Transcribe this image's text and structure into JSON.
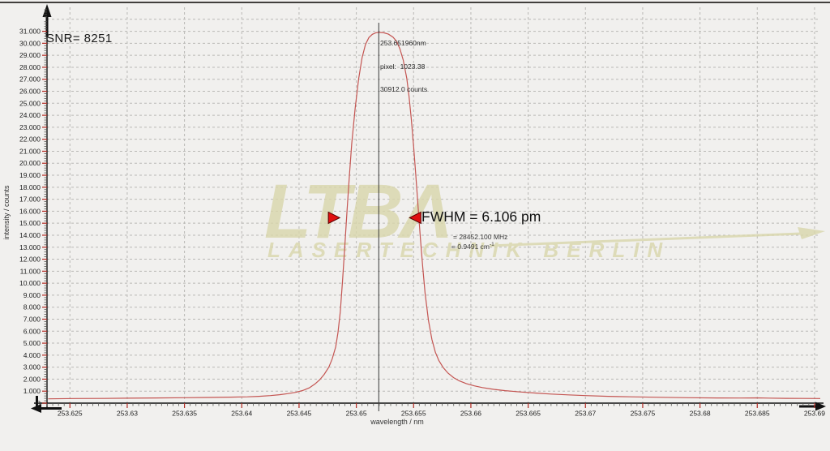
{
  "window": {
    "background": "#f1f0ee",
    "top_border_color": "#413f3c"
  },
  "colors": {
    "grid": "#b9b8b5",
    "axis": "#111111",
    "tick_major": "#b22a22",
    "tick_minor": "#555550",
    "tick_label": "#1e1e1e",
    "curve": "#c45552",
    "marker_line": "#3a3a3a",
    "marker_red": "#e01010",
    "marker_red_outline": "#550000",
    "watermark": "#d9d6ab"
  },
  "annotations": {
    "snr": "SNR= 8251",
    "peak": {
      "wavelength": "253.651960nm",
      "pixel": "pixel:  1023.38",
      "counts": "30912.0 counts",
      "marker_nm": 253.65196
    },
    "fwhm": {
      "label": "FWHM = 6.106 pm",
      "mhz": "= 28452.100 MHz",
      "wavenumber_value": "= 0.9491 cm",
      "wavenumber_sup": "-1",
      "level_counts": 15456,
      "left_tip_nm": 253.64855,
      "right_tip_nm": 253.65465
    }
  },
  "watermark": {
    "logo": "LTB",
    "logo_mark": "Λ",
    "subtitle": "LASERTECHNIK BERLIN"
  },
  "chart_data": {
    "type": "line",
    "title": "",
    "xlabel": "wavelength / nm",
    "ylabel": "intensity / counts",
    "x_range": [
      253.623,
      253.6905
    ],
    "y_range": [
      0,
      33000
    ],
    "grid": "dashed",
    "legend": "none",
    "x_major_ticks": [
      253.625,
      253.63,
      253.635,
      253.64,
      253.645,
      253.65,
      253.655,
      253.66,
      253.665,
      253.67,
      253.675,
      253.68,
      253.685,
      253.69
    ],
    "x_tick_labels": [
      "253.625",
      "253.63",
      "253.635",
      "253.64",
      "253.645",
      "253.65",
      "253.655",
      "253.66",
      "253.665",
      "253.67",
      "253.675",
      "253.68",
      "253.685",
      "253.69"
    ],
    "x_minor_step": 0.0005,
    "y_major_step": 1000,
    "y_minor_step": 200,
    "y_label_max": 31000,
    "y_tick_labels": [
      "0",
      "1.000",
      "2.000",
      "3.000",
      "4.000",
      "5.000",
      "6.000",
      "7.000",
      "8.000",
      "9.000",
      "10.000",
      "11.000",
      "12.000",
      "13.000",
      "14.000",
      "15.000",
      "16.000",
      "17.000",
      "18.000",
      "19.000",
      "20.000",
      "21.000",
      "22.000",
      "23.000",
      "24.000",
      "25.000",
      "26.000",
      "27.000",
      "28.000",
      "29.000",
      "30.000",
      "31.000"
    ],
    "peak": {
      "wavelength_nm": 253.65196,
      "counts": 30912,
      "pixel": 1023.38,
      "fwhm_pm": 6.106,
      "fwhm_mhz": 28452.1,
      "fwhm_wavenumber_cm": 0.9491,
      "snr": 8251
    },
    "series": [
      {
        "name": "spectrum",
        "color": "#c45552",
        "points": [
          [
            253.6231,
            360
          ],
          [
            253.6255,
            385
          ],
          [
            253.628,
            395
          ],
          [
            253.63,
            415
          ],
          [
            253.6325,
            430
          ],
          [
            253.635,
            450
          ],
          [
            253.637,
            470
          ],
          [
            253.639,
            500
          ],
          [
            253.6405,
            530
          ],
          [
            253.6415,
            570
          ],
          [
            253.6425,
            630
          ],
          [
            253.6433,
            700
          ],
          [
            253.644,
            790
          ],
          [
            253.6447,
            900
          ],
          [
            253.6453,
            1050
          ],
          [
            253.6459,
            1280
          ],
          [
            253.6464,
            1600
          ],
          [
            253.6468,
            1950
          ],
          [
            253.6472,
            2400
          ],
          [
            253.6476,
            3000
          ],
          [
            253.6479,
            3700
          ],
          [
            253.6482,
            4700
          ],
          [
            253.6484,
            5900
          ],
          [
            253.6486,
            7600
          ],
          [
            253.6488,
            10200
          ],
          [
            253.649,
            13200
          ],
          [
            253.6492,
            16200
          ],
          [
            253.6494,
            19000
          ],
          [
            253.6496,
            21600
          ],
          [
            253.6499,
            24600
          ],
          [
            253.6502,
            27000
          ],
          [
            253.6505,
            28800
          ],
          [
            253.6508,
            29900
          ],
          [
            253.6511,
            30480
          ],
          [
            253.6514,
            30750
          ],
          [
            253.6517,
            30880
          ],
          [
            253.652,
            30912
          ],
          [
            253.6524,
            30880
          ],
          [
            253.6528,
            30760
          ],
          [
            253.6532,
            30520
          ],
          [
            253.6535,
            30180
          ],
          [
            253.6538,
            29550
          ],
          [
            253.6541,
            28600
          ],
          [
            253.6544,
            27100
          ],
          [
            253.6546,
            25600
          ],
          [
            253.6548,
            23700
          ],
          [
            253.655,
            21400
          ],
          [
            253.6552,
            18900
          ],
          [
            253.6554,
            16300
          ],
          [
            253.6556,
            13700
          ],
          [
            253.6558,
            11300
          ],
          [
            253.656,
            9200
          ],
          [
            253.6563,
            6900
          ],
          [
            253.6566,
            5300
          ],
          [
            253.6569,
            4250
          ],
          [
            253.6572,
            3550
          ],
          [
            253.6576,
            2950
          ],
          [
            253.658,
            2500
          ],
          [
            253.6585,
            2120
          ],
          [
            253.659,
            1850
          ],
          [
            253.6596,
            1630
          ],
          [
            253.6603,
            1440
          ],
          [
            253.661,
            1300
          ],
          [
            253.662,
            1150
          ],
          [
            253.663,
            1040
          ],
          [
            253.6643,
            930
          ],
          [
            253.6657,
            840
          ],
          [
            253.667,
            760
          ],
          [
            253.6685,
            690
          ],
          [
            253.67,
            630
          ],
          [
            253.672,
            570
          ],
          [
            253.674,
            525
          ],
          [
            253.6765,
            485
          ],
          [
            253.679,
            450
          ],
          [
            253.6815,
            430
          ],
          [
            253.6835,
            425
          ],
          [
            253.685,
            440
          ],
          [
            253.686,
            420
          ],
          [
            253.6875,
            400
          ],
          [
            253.689,
            390
          ],
          [
            253.6905,
            385
          ]
        ]
      }
    ]
  }
}
